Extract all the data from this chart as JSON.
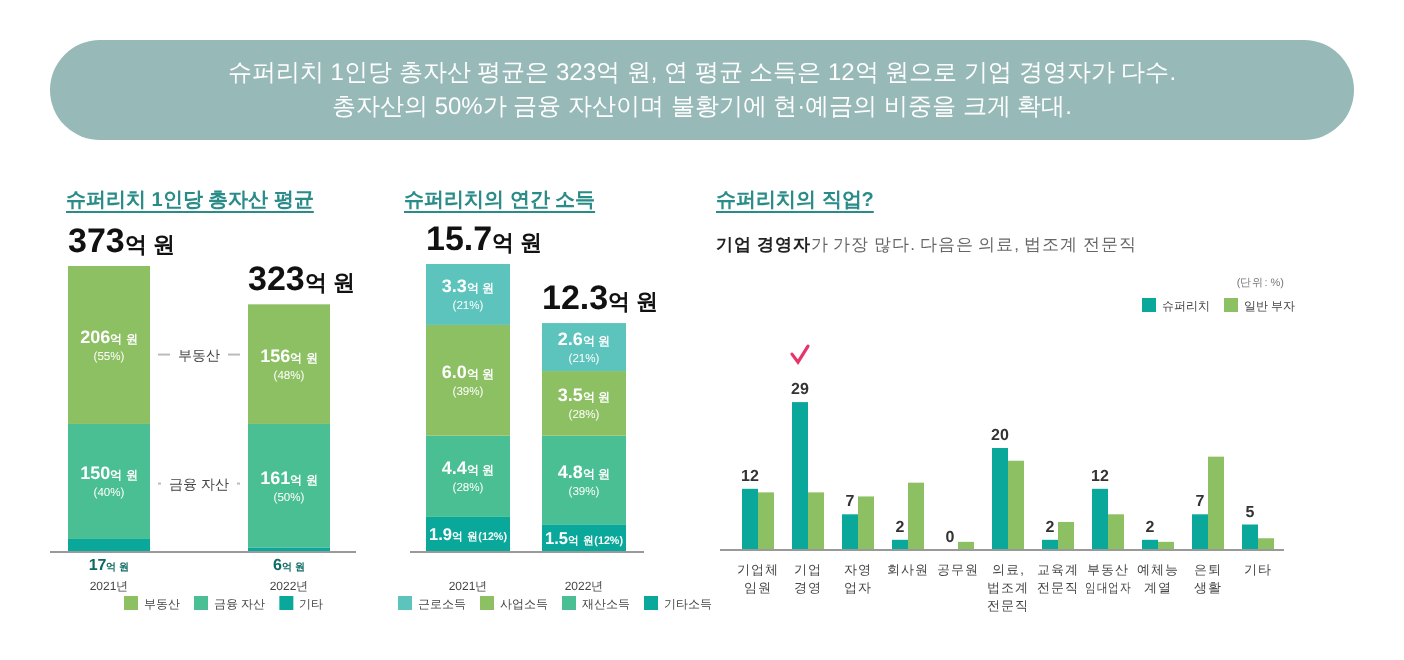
{
  "chart_data": [
    {
      "type": "bar",
      "stacked": true,
      "title": "슈퍼리치 1인당 총자산 평균",
      "categories": [
        "2021년",
        "2022년"
      ],
      "series": [
        {
          "name": "기타",
          "color": "#0aa89a",
          "values": [
            17,
            6
          ],
          "value_labels": [
            "17억 원",
            "6억 원"
          ]
        },
        {
          "name": "금융 자산",
          "color": "#4bbf94",
          "values": [
            150,
            161
          ],
          "value_labels": [
            "150억 원 (40%)",
            "161억 원 (50%)"
          ]
        },
        {
          "name": "부동산",
          "color": "#8cc063",
          "values": [
            206,
            156
          ],
          "value_labels": [
            "206억 원 (55%)",
            "156억 원 (48%)"
          ]
        }
      ],
      "totals": [
        "373억 원",
        "323억 원"
      ],
      "legend": "bottom",
      "annotations": [
        "슈퍼리치 1인당 총자산 평균은 323억 원, 연 평균 소득은 12억 원으로 기업 경영자가 다수.",
        "총자산의 50%가 금융 자산이며 불황기에 현·예금의 비중을 크게 확대."
      ]
    },
    {
      "type": "bar",
      "stacked": true,
      "title": "슈퍼리치의 연간 소득",
      "categories": [
        "2021년",
        "2022년"
      ],
      "series": [
        {
          "name": "기타소득",
          "color": "#0aa89a",
          "values": [
            1.9,
            1.5
          ],
          "value_labels": [
            "1.9억 원(12%)",
            "1.5억 원(12%)"
          ]
        },
        {
          "name": "재산소득",
          "color": "#4bbf94",
          "values": [
            4.4,
            4.8
          ],
          "value_labels": [
            "4.4억 원 (28%)",
            "4.8억 원 (39%)"
          ]
        },
        {
          "name": "사업소득",
          "color": "#8cc063",
          "values": [
            6.0,
            3.5
          ],
          "value_labels": [
            "6.0억 원 (39%)",
            "3.5억 원 (28%)"
          ]
        },
        {
          "name": "근로소득",
          "color": "#5cc4bc",
          "values": [
            3.3,
            2.6
          ],
          "value_labels": [
            "3.3억 원 (21%)",
            "2.6억 원 (21%)"
          ]
        }
      ],
      "totals": [
        "15.7억 원",
        "12.3억 원"
      ],
      "legend": "bottom"
    },
    {
      "type": "bar",
      "title": "슈퍼리치의 직업?",
      "subtitle": "**기업 경영자**가 가장 많다. 다음은 의료, 법조계 전문직",
      "categories": [
        "기업체 임원",
        "기업 경영",
        "자영 업자",
        "회사원",
        "공무원",
        "의료, 법조계 전문직",
        "교육계 전문직",
        "부동산 임대업자",
        "예체능 계열",
        "은퇴 생활",
        "기타"
      ],
      "series": [
        {
          "name": "슈퍼리치",
          "color": "#0aa89a",
          "values": [
            12,
            29,
            7,
            2,
            0,
            20,
            2,
            12,
            2,
            7,
            5
          ],
          "value_labels": [
            "12",
            "29",
            "7",
            "2",
            "0",
            "20",
            "2",
            "12",
            "2",
            "7",
            "5"
          ]
        },
        {
          "name": "일반 부자",
          "color": "#8cc063",
          "values": [
            11.3,
            11.3,
            10.5,
            13.2,
            1.6,
            17.5,
            5.5,
            7,
            1.6,
            18.3,
            2.3
          ]
        }
      ],
      "legend": "top right",
      "annotations": [
        "(단위: %)"
      ]
    }
  ]
}
